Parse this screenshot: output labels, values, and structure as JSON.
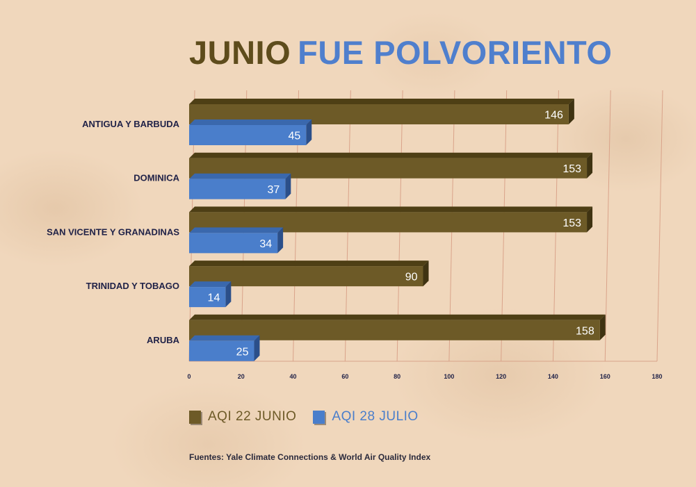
{
  "title": {
    "part1": "JUNIO",
    "part2": "FUE POLVORIENTO"
  },
  "colors": {
    "series1": "#6d5a27",
    "series1_dark": "#3f3312",
    "series1_top": "#4e3f15",
    "series2": "#4a7ecb",
    "series2_dark": "#2b4f8a",
    "series2_top": "#3a68ad",
    "title1": "#5e4c1c",
    "title2": "#4f7fcd",
    "label": "#1f2147",
    "grid": "#d9a38a"
  },
  "legend": [
    {
      "label": "AQI 22 JUNIO",
      "color": "#6d5a27"
    },
    {
      "label": "AQI 28 JULIO",
      "color": "#4a7ecb"
    }
  ],
  "source": "Fuentes: Yale Climate Connections & World Air Quality Index",
  "chart_data": {
    "type": "bar",
    "orientation": "horizontal",
    "categories": [
      "ANTIGUA Y BARBUDA",
      "DOMINICA",
      "SAN VICENTE Y GRANADINAS",
      "TRINIDAD Y TOBAGO",
      "ARUBA"
    ],
    "series": [
      {
        "name": "AQI 22 JUNIO",
        "values": [
          146,
          153,
          153,
          90,
          158
        ]
      },
      {
        "name": "AQI 28 JULIO",
        "values": [
          45,
          37,
          34,
          14,
          25
        ]
      }
    ],
    "xlim": [
      0,
      180
    ],
    "xticks": [
      0,
      20,
      40,
      60,
      80,
      100,
      120,
      140,
      160,
      180
    ],
    "grid": true,
    "legend_position": "bottom-left"
  }
}
